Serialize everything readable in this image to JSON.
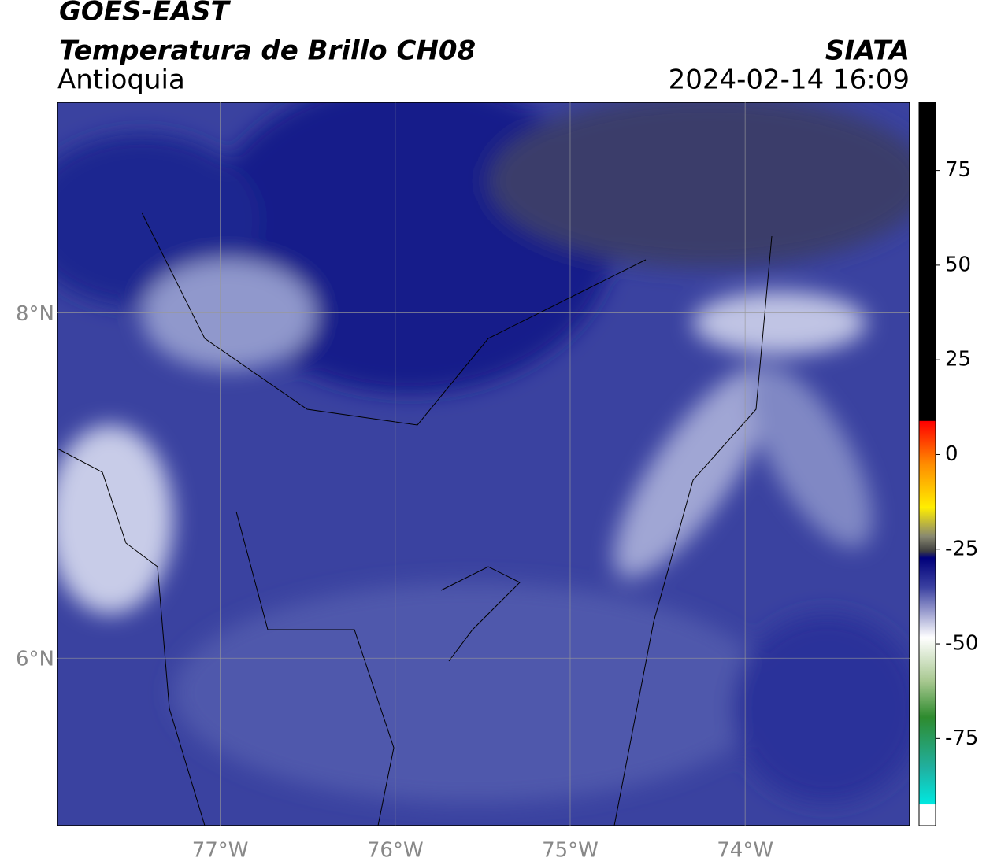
{
  "header": {
    "title": "GOES-EAST",
    "subtitle": "Temperatura de Brillo CH08",
    "region": "Antioquia",
    "source": "SIATA",
    "datetime": "2024-02-14 16:09"
  },
  "map": {
    "xlim": [
      -77.93,
      -73.06
    ],
    "ylim": [
      5.03,
      9.22
    ],
    "xticks": [
      {
        "value": -77,
        "label": "77°W"
      },
      {
        "value": -76,
        "label": "76°W"
      },
      {
        "value": -75,
        "label": "75°W"
      },
      {
        "value": -74,
        "label": "74°W"
      }
    ],
    "yticks": [
      {
        "value": 6,
        "label": "6°N"
      },
      {
        "value": 8,
        "label": "8°N"
      }
    ],
    "grid": true
  },
  "colorbar": {
    "lim": [
      -98,
      93
    ],
    "ticks": [
      75,
      50,
      25,
      0,
      -25,
      -50,
      -75
    ]
  }
}
